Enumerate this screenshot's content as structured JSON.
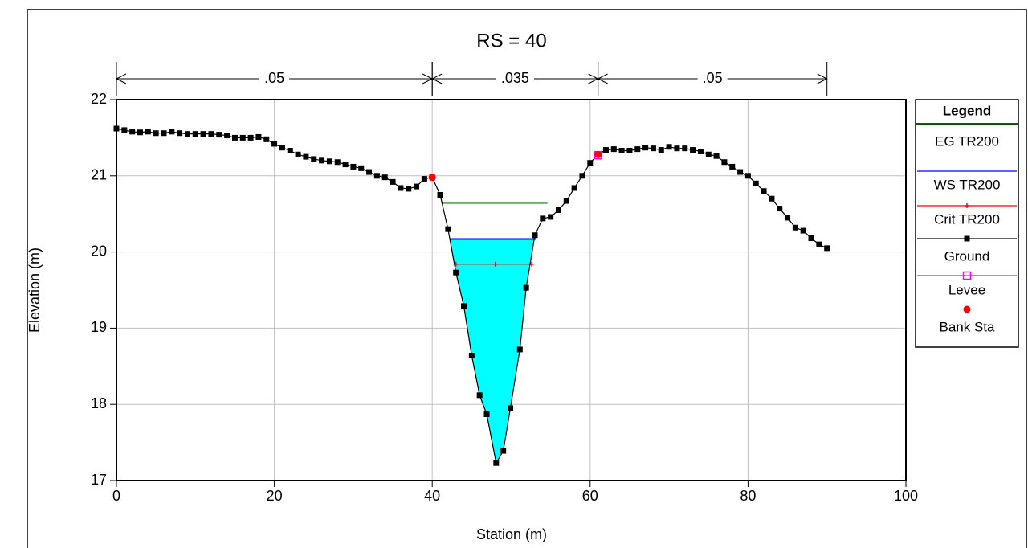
{
  "chart_data": {
    "type": "cross_section",
    "title": "RS = 40",
    "x_label": "Station (m)",
    "y_label": "Elevation (m)",
    "xlim": [
      0,
      100
    ],
    "ylim": [
      17,
      22
    ],
    "xticks": [
      0,
      20,
      40,
      60,
      80,
      100
    ],
    "yticks": [
      17,
      18,
      19,
      20,
      21,
      22
    ],
    "grid": true,
    "legend_title": "Legend",
    "n_values": [
      {
        "label": ".05",
        "x": [
          0,
          40
        ]
      },
      {
        "label": ".035",
        "x": [
          40,
          61
        ]
      },
      {
        "label": ".05",
        "x": [
          61,
          90
        ]
      }
    ],
    "series": [
      {
        "name": "EG TR200",
        "color": "#008000",
        "marker": "none",
        "x": [
          41.3,
          54.6
        ],
        "values": [
          20.64,
          20.64
        ]
      },
      {
        "name": "WS TR200",
        "color": "#0000ff",
        "fill": "#00ffff",
        "marker": "none",
        "x": [
          42.2,
          53.1
        ],
        "values": [
          20.17,
          20.17
        ]
      },
      {
        "name": "Crit TR200",
        "color": "#ff0000",
        "marker": "plus",
        "x": [
          43.0,
          48.0,
          52.6
        ],
        "values": [
          19.84,
          19.84,
          19.84
        ]
      },
      {
        "name": "Ground",
        "color": "#000000",
        "marker": "square",
        "x": [
          0,
          1,
          2,
          3,
          4,
          5,
          6,
          7,
          8,
          9,
          10,
          11,
          12,
          13,
          14,
          15,
          16,
          17,
          18,
          19,
          20,
          21,
          22,
          23,
          24,
          25,
          26,
          27,
          28,
          29,
          30,
          31,
          32,
          33,
          34,
          35,
          36,
          37,
          38,
          39,
          40,
          41,
          42,
          43,
          44,
          45,
          46,
          46.9,
          48.1,
          49,
          49.9,
          51.1,
          51.9,
          53,
          54,
          55,
          56,
          57,
          58,
          59,
          60,
          61,
          62,
          63,
          64,
          65,
          66,
          67,
          68,
          69,
          70,
          71,
          72,
          73,
          74,
          75,
          76,
          77,
          78,
          79,
          80,
          81,
          82,
          83,
          84,
          85,
          86,
          87,
          88,
          89,
          90
        ],
        "values": [
          21.62,
          21.6,
          21.58,
          21.57,
          21.58,
          21.56,
          21.56,
          21.58,
          21.56,
          21.55,
          21.55,
          21.55,
          21.55,
          21.54,
          21.53,
          21.5,
          21.5,
          21.5,
          21.51,
          21.48,
          21.42,
          21.37,
          21.33,
          21.28,
          21.25,
          21.22,
          21.2,
          21.19,
          21.18,
          21.15,
          21.12,
          21.1,
          21.05,
          21.0,
          20.98,
          20.92,
          20.84,
          20.83,
          20.86,
          20.96,
          20.98,
          20.75,
          20.3,
          19.73,
          19.29,
          18.64,
          18.12,
          17.87,
          17.23,
          17.39,
          17.95,
          18.72,
          19.53,
          20.22,
          20.44,
          20.46,
          20.55,
          20.67,
          20.84,
          21.0,
          21.17,
          21.28,
          21.34,
          21.35,
          21.33,
          21.33,
          21.35,
          21.37,
          21.36,
          21.34,
          21.38,
          21.36,
          21.36,
          21.34,
          21.32,
          21.28,
          21.26,
          21.18,
          21.12,
          21.05,
          21.0,
          20.9,
          20.8,
          20.7,
          20.57,
          20.45,
          20.32,
          20.28,
          20.18,
          20.1,
          20.05
        ]
      },
      {
        "name": "Levee",
        "color": "#ff00ff",
        "marker": "open-square",
        "x": [
          61
        ],
        "values": [
          21.27
        ]
      },
      {
        "name": "Bank Sta",
        "color": "#ff0000",
        "marker": "dot",
        "x": [
          40,
          61
        ],
        "values": [
          20.98,
          21.28
        ]
      }
    ]
  }
}
